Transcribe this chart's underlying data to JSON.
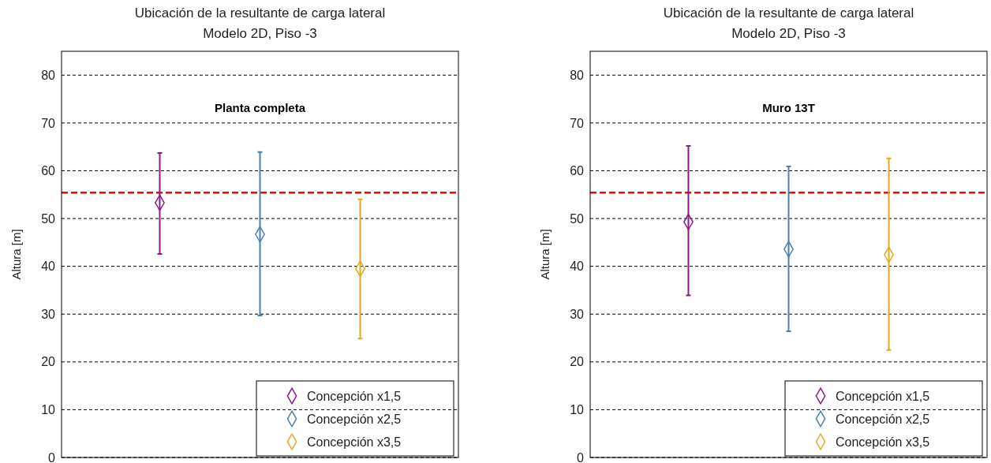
{
  "chart_data": [
    {
      "type": "scatter",
      "title": "Ubicación de la resultante de carga lateral",
      "subtitle": "Modelo 2D, Piso -3",
      "ylabel": "Altura [m]",
      "annotations": [
        "Planta completa"
      ],
      "categories": [
        null,
        null,
        null
      ],
      "ylim": [
        0,
        85
      ],
      "yticks": [
        0,
        10,
        20,
        30,
        40,
        50,
        60,
        70,
        80
      ],
      "grid": "y",
      "legend": "bottom right",
      "marker": "diamond",
      "tick_labels": "y",
      "ref_lines": [
        {
          "axis": "y",
          "value": 55.4,
          "color": "#ff0000",
          "line_style": "dashed"
        }
      ],
      "series": [
        {
          "name": "Concepción x1,5",
          "color": "#8b1a8b",
          "values": [
            53.3,
            null,
            null
          ],
          "errors": [
            [
              42.6,
              63.7
            ],
            null,
            null
          ]
        },
        {
          "name": "Concepción x2,5",
          "color": "#4a80b8",
          "values": [
            null,
            46.7,
            null
          ],
          "errors": [
            null,
            [
              29.7,
              63.9
            ],
            null
          ]
        },
        {
          "name": "Concepción x3,5",
          "color": "#e6a820",
          "values": [
            null,
            null,
            39.5
          ],
          "errors": [
            null,
            null,
            [
              24.9,
              54.0
            ]
          ]
        }
      ]
    },
    {
      "type": "scatter",
      "title": "Ubicación de la resultante de carga lateral",
      "subtitle": "Modelo 2D, Piso -3",
      "ylabel": "Altura [m]",
      "annotations": [
        "Muro 13T"
      ],
      "categories": [
        null,
        null,
        null
      ],
      "ylim": [
        0,
        85
      ],
      "yticks": [
        0,
        10,
        20,
        30,
        40,
        50,
        60,
        70,
        80
      ],
      "grid": "y",
      "legend": "bottom right",
      "marker": "diamond",
      "tick_labels": "y",
      "ref_lines": [
        {
          "axis": "y",
          "value": 55.4,
          "color": "#ff0000",
          "line_style": "dashed"
        }
      ],
      "series": [
        {
          "name": "Concepción x1,5",
          "color": "#8b1a8b",
          "values": [
            49.3,
            null,
            null
          ],
          "errors": [
            [
              33.9,
              65.2
            ],
            null,
            null
          ]
        },
        {
          "name": "Concepción x2,5",
          "color": "#4a80b8",
          "values": [
            null,
            43.6,
            null
          ],
          "errors": [
            null,
            [
              26.4,
              60.9
            ],
            null
          ]
        },
        {
          "name": "Concepción x3,5",
          "color": "#e6a820",
          "values": [
            null,
            null,
            42.4
          ],
          "errors": [
            null,
            null,
            [
              22.5,
              62.6
            ]
          ]
        }
      ]
    }
  ]
}
